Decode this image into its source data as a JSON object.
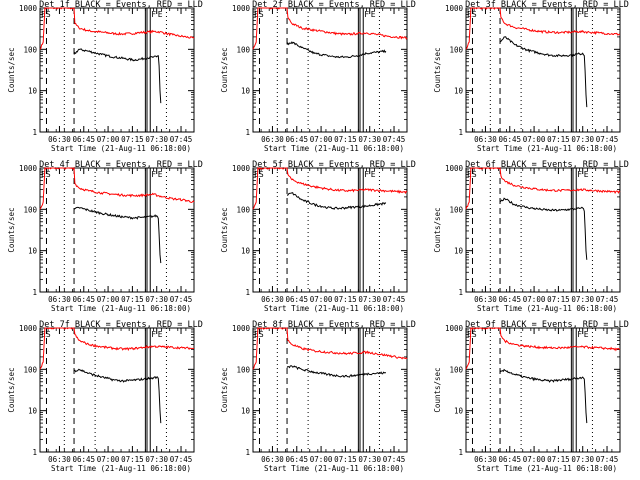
{
  "chart_data": [
    {
      "type": "line",
      "title": "Det 1f BLACK = Events, RED = LLD",
      "xlabel": "Start Time (21-Aug-11 06:18:00)",
      "ylabel": "Counts/sec",
      "x_ticks": [
        "06:30",
        "06:45",
        "07:00",
        "07:15",
        "07:30",
        "07:45"
      ],
      "y_ticks": [
        "1",
        "10",
        "100",
        "1000"
      ],
      "y_scale": "log",
      "ylim": [
        1,
        1000
      ],
      "xlim_minutes": [
        0,
        95
      ],
      "markers": [
        "ES",
        "F",
        "E"
      ],
      "series": [
        {
          "name": "LLD",
          "color": "#ff0000",
          "x": [
            0,
            2,
            3,
            21,
            21.5,
            24,
            30,
            38,
            46,
            50,
            56,
            62,
            66,
            70,
            74,
            78,
            82,
            86,
            90,
            95
          ],
          "values": [
            100,
            150,
            1000,
            1000,
            420,
            330,
            280,
            260,
            240,
            235,
            240,
            255,
            260,
            270,
            265,
            240,
            225,
            210,
            200,
            185
          ]
        },
        {
          "name": "Events",
          "color": "#000000",
          "x": [
            21,
            24,
            30,
            38,
            46,
            52,
            58,
            62,
            66,
            70,
            72,
            73,
            73.5,
            74,
            74.5
          ],
          "values": [
            75,
            100,
            90,
            75,
            65,
            60,
            55,
            58,
            62,
            65,
            66,
            70,
            40,
            10,
            5
          ]
        }
      ]
    },
    {
      "type": "line",
      "title": "Det 2f BLACK = Events, RED = LLD",
      "xlabel": "Start Time (21-Aug-11 06:18:00)",
      "ylabel": "Counts/sec",
      "x_ticks": [
        "06:30",
        "06:45",
        "07:00",
        "07:15",
        "07:30",
        "07:45"
      ],
      "y_ticks": [
        "1",
        "10",
        "100",
        "1000"
      ],
      "y_scale": "log",
      "ylim": [
        1,
        1000
      ],
      "xlim_minutes": [
        0,
        95
      ],
      "markers": [
        "ES",
        "F",
        "E"
      ],
      "series": [
        {
          "name": "LLD",
          "color": "#ff0000",
          "x": [
            0,
            2,
            3,
            21,
            21.5,
            24,
            30,
            38,
            46,
            52,
            58,
            64,
            70,
            76,
            82,
            88,
            95
          ],
          "values": [
            100,
            150,
            1000,
            1000,
            600,
            420,
            330,
            290,
            260,
            240,
            230,
            240,
            250,
            230,
            210,
            200,
            190
          ]
        },
        {
          "name": "Events",
          "color": "#000000",
          "x": [
            21,
            24,
            30,
            38,
            46,
            52,
            58,
            64,
            70,
            76,
            82
          ],
          "values": [
            130,
            150,
            110,
            80,
            70,
            65,
            65,
            70,
            80,
            85,
            90
          ]
        }
      ]
    },
    {
      "type": "line",
      "title": "Det 3f BLACK = Events, RED = LLD",
      "xlabel": "Start Time (21-Aug-11 06:18:00)",
      "ylabel": "Counts/sec",
      "x_ticks": [
        "06:30",
        "06:45",
        "07:00",
        "07:15",
        "07:30",
        "07:45"
      ],
      "y_ticks": [
        "1",
        "10",
        "100",
        "1000"
      ],
      "y_scale": "log",
      "ylim": [
        1,
        1000
      ],
      "xlim_minutes": [
        0,
        95
      ],
      "markers": [
        "ES",
        "F",
        "E"
      ],
      "series": [
        {
          "name": "LLD",
          "color": "#ff0000",
          "x": [
            0,
            2,
            3,
            21,
            21.5,
            24,
            30,
            38,
            46,
            52,
            58,
            64,
            70,
            76,
            82,
            88,
            95
          ],
          "values": [
            100,
            150,
            1000,
            1000,
            600,
            420,
            340,
            300,
            270,
            260,
            255,
            260,
            270,
            260,
            250,
            240,
            230
          ]
        },
        {
          "name": "Events",
          "color": "#000000",
          "x": [
            21,
            24,
            30,
            38,
            46,
            52,
            58,
            64,
            70,
            72,
            73,
            73.5,
            74,
            74.5
          ],
          "values": [
            150,
            200,
            130,
            95,
            80,
            72,
            70,
            72,
            78,
            80,
            70,
            30,
            8,
            4
          ]
        }
      ]
    },
    {
      "type": "line",
      "title": "Det 4f BLACK = Events, RED = LLD",
      "xlabel": "Start Time (21-Aug-11 06:18:00)",
      "ylabel": "Counts/sec",
      "x_ticks": [
        "06:30",
        "06:45",
        "07:00",
        "07:15",
        "07:30",
        "07:45"
      ],
      "y_ticks": [
        "1",
        "10",
        "100",
        "1000"
      ],
      "y_scale": "log",
      "ylim": [
        1,
        1000
      ],
      "xlim_minutes": [
        0,
        95
      ],
      "markers": [
        "ES",
        "F",
        "E"
      ],
      "series": [
        {
          "name": "LLD",
          "color": "#ff0000",
          "x": [
            0,
            2,
            3,
            21,
            21.5,
            24,
            30,
            38,
            46,
            52,
            58,
            64,
            70,
            76,
            82,
            88,
            95
          ],
          "values": [
            100,
            150,
            1000,
            1000,
            420,
            330,
            280,
            250,
            230,
            220,
            215,
            220,
            230,
            200,
            180,
            170,
            150
          ]
        },
        {
          "name": "Events",
          "color": "#000000",
          "x": [
            21,
            24,
            30,
            38,
            46,
            52,
            58,
            64,
            70,
            72,
            73,
            73.5,
            74,
            74.5
          ],
          "values": [
            100,
            110,
            95,
            80,
            70,
            65,
            62,
            64,
            68,
            70,
            60,
            25,
            8,
            5
          ]
        }
      ]
    },
    {
      "type": "line",
      "title": "Det 5f BLACK = Events, RED = LLD",
      "xlabel": "Start Time (21-Aug-11 06:18:00)",
      "ylabel": "Counts/sec",
      "x_ticks": [
        "06:30",
        "06:45",
        "07:00",
        "07:15",
        "07:30",
        "07:45"
      ],
      "y_ticks": [
        "1",
        "10",
        "100",
        "1000"
      ],
      "y_scale": "log",
      "ylim": [
        1,
        1000
      ],
      "xlim_minutes": [
        0,
        95
      ],
      "markers": [
        "ES",
        "F",
        "E"
      ],
      "series": [
        {
          "name": "LLD",
          "color": "#ff0000",
          "x": [
            0,
            2,
            3,
            21,
            21.5,
            24,
            30,
            38,
            46,
            52,
            58,
            64,
            70,
            76,
            82,
            88,
            95
          ],
          "values": [
            100,
            150,
            1000,
            1000,
            700,
            520,
            420,
            350,
            310,
            290,
            280,
            290,
            300,
            290,
            280,
            270,
            260
          ]
        },
        {
          "name": "Events",
          "color": "#000000",
          "x": [
            21,
            24,
            30,
            38,
            46,
            52,
            58,
            64,
            70,
            76,
            82
          ],
          "values": [
            220,
            250,
            170,
            130,
            110,
            105,
            110,
            115,
            120,
            130,
            140
          ]
        }
      ]
    },
    {
      "type": "line",
      "title": "Det 6f BLACK = Events, RED = LLD",
      "xlabel": "Start Time (21-Aug-11 06:18:00)",
      "ylabel": "Counts/sec",
      "x_ticks": [
        "06:30",
        "06:45",
        "07:00",
        "07:15",
        "07:30",
        "07:45"
      ],
      "y_ticks": [
        "1",
        "10",
        "100",
        "1000"
      ],
      "y_scale": "log",
      "ylim": [
        1,
        1000
      ],
      "xlim_minutes": [
        0,
        95
      ],
      "markers": [
        "ES",
        "F",
        "E"
      ],
      "series": [
        {
          "name": "LLD",
          "color": "#ff0000",
          "x": [
            0,
            2,
            3,
            21,
            21.5,
            24,
            30,
            38,
            46,
            52,
            58,
            64,
            70,
            76,
            82,
            88,
            95
          ],
          "values": [
            100,
            150,
            1000,
            1000,
            650,
            480,
            380,
            330,
            300,
            290,
            285,
            290,
            300,
            290,
            280,
            270,
            260
          ]
        },
        {
          "name": "Events",
          "color": "#000000",
          "x": [
            21,
            24,
            30,
            38,
            46,
            52,
            58,
            64,
            70,
            72,
            73,
            73.5,
            74,
            74.5
          ],
          "values": [
            150,
            180,
            130,
            110,
            100,
            95,
            95,
            100,
            105,
            108,
            90,
            35,
            10,
            6
          ]
        }
      ]
    },
    {
      "type": "line",
      "title": "Det 7f BLACK = Events, RED = LLD",
      "xlabel": "Start Time (21-Aug-11 06:18:00)",
      "ylabel": "Counts/sec",
      "x_ticks": [
        "06:30",
        "06:45",
        "07:00",
        "07:15",
        "07:30",
        "07:45"
      ],
      "y_ticks": [
        "1",
        "10",
        "100",
        "1000"
      ],
      "y_scale": "log",
      "ylim": [
        1,
        1000
      ],
      "xlim_minutes": [
        0,
        95
      ],
      "markers": [
        "ES",
        "F",
        "E"
      ],
      "series": [
        {
          "name": "LLD",
          "color": "#ff0000",
          "x": [
            0,
            2,
            3,
            21,
            21.5,
            24,
            30,
            38,
            46,
            52,
            58,
            64,
            70,
            76,
            82,
            88,
            95
          ],
          "values": [
            100,
            150,
            1000,
            1000,
            700,
            500,
            400,
            350,
            320,
            310,
            320,
            340,
            360,
            350,
            340,
            330,
            320
          ]
        },
        {
          "name": "Events",
          "color": "#000000",
          "x": [
            21,
            24,
            30,
            38,
            46,
            52,
            58,
            64,
            70,
            72,
            73,
            73.5,
            74,
            74.5
          ],
          "values": [
            90,
            100,
            80,
            65,
            55,
            52,
            55,
            58,
            62,
            65,
            60,
            30,
            10,
            5
          ]
        }
      ]
    },
    {
      "type": "line",
      "title": "Det 8f BLACK = Events, RED = LLD",
      "xlabel": "Start Time (21-Aug-11 06:18:00)",
      "ylabel": "Counts/sec",
      "x_ticks": [
        "06:30",
        "06:45",
        "07:00",
        "07:15",
        "07:30",
        "07:45"
      ],
      "y_ticks": [
        "1",
        "10",
        "100",
        "1000"
      ],
      "y_scale": "log",
      "ylim": [
        1,
        1000
      ],
      "xlim_minutes": [
        0,
        95
      ],
      "markers": [
        "ES",
        "F",
        "E"
      ],
      "series": [
        {
          "name": "LLD",
          "color": "#ff0000",
          "x": [
            0,
            2,
            3,
            21,
            21.5,
            24,
            30,
            38,
            46,
            52,
            58,
            64,
            70,
            76,
            82,
            88,
            95
          ],
          "values": [
            100,
            150,
            1000,
            1000,
            500,
            400,
            320,
            280,
            260,
            250,
            240,
            250,
            260,
            240,
            220,
            200,
            180
          ]
        },
        {
          "name": "Events",
          "color": "#000000",
          "x": [
            21,
            24,
            30,
            38,
            46,
            52,
            58,
            64,
            70,
            76,
            82
          ],
          "values": [
            110,
            120,
            100,
            85,
            75,
            70,
            68,
            72,
            78,
            80,
            82
          ]
        }
      ]
    },
    {
      "type": "line",
      "title": "Det 9f BLACK = Events, RED = LLD",
      "xlabel": "Start Time (21-Aug-11 06:18:00)",
      "ylabel": "Counts/sec",
      "x_ticks": [
        "06:30",
        "06:45",
        "07:00",
        "07:15",
        "07:30",
        "07:45"
      ],
      "y_ticks": [
        "1",
        "10",
        "100",
        "1000"
      ],
      "y_scale": "log",
      "ylim": [
        1,
        1000
      ],
      "xlim_minutes": [
        0,
        95
      ],
      "markers": [
        "ES",
        "F",
        "E"
      ],
      "series": [
        {
          "name": "LLD",
          "color": "#ff0000",
          "x": [
            0,
            2,
            3,
            21,
            21.5,
            24,
            30,
            38,
            46,
            52,
            58,
            64,
            70,
            76,
            82,
            88,
            95
          ],
          "values": [
            100,
            150,
            1000,
            1000,
            650,
            480,
            400,
            360,
            340,
            330,
            330,
            340,
            350,
            340,
            330,
            320,
            300
          ]
        },
        {
          "name": "Events",
          "color": "#000000",
          "x": [
            21,
            24,
            30,
            38,
            46,
            52,
            58,
            64,
            70,
            72,
            73,
            73.5,
            74,
            74.5
          ],
          "values": [
            85,
            95,
            75,
            62,
            55,
            52,
            55,
            58,
            62,
            65,
            58,
            28,
            9,
            5
          ]
        }
      ]
    }
  ],
  "reference_lines_minutes": {
    "dashed": [
      4,
      21
    ],
    "dotted": [
      15,
      34,
      78
    ],
    "solid": [
      65,
      66,
      68
    ]
  }
}
